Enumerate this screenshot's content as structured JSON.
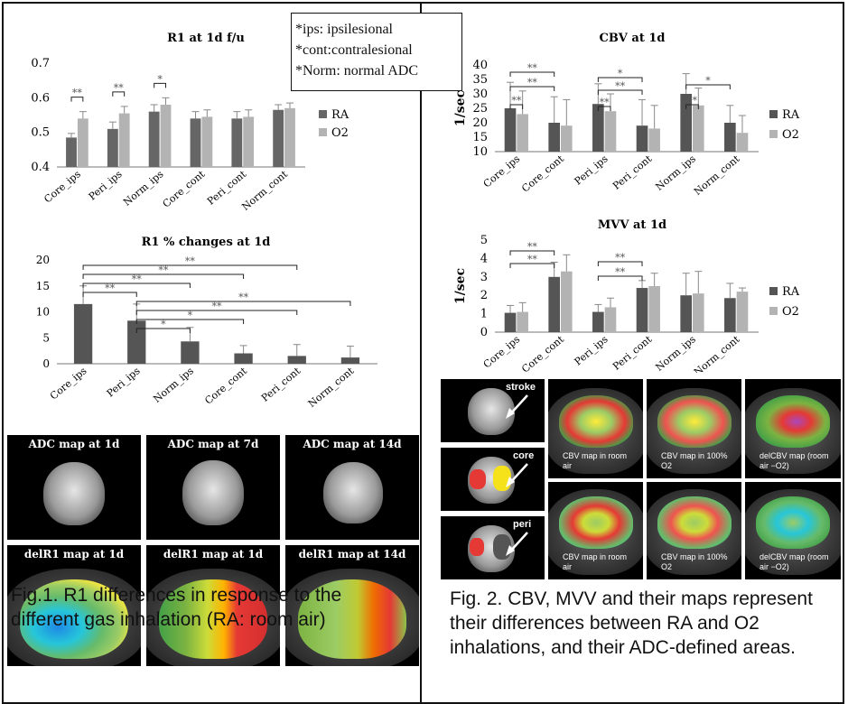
{
  "legend_notes": [
    "*ips: ipsilesional",
    "*cont:contralesional",
    "*Norm: normal ADC"
  ],
  "fig1_caption": "Fig.1. R1 differences in response to the different gas inhalation (RA: room air)",
  "fig2_caption": "Fig. 2. CBV, MVV and their maps represent their differences between RA and O2 inhalations, and their ADC-defined areas.",
  "fig1_maps": {
    "top_labels": [
      "ADC map at 1d",
      "ADC map at 7d",
      "ADC map at 14d"
    ],
    "bottom_labels": [
      "delR1 map at 1d",
      "delR1 map at 1d",
      "delR1 map at 14d"
    ]
  },
  "fig2_maps": {
    "side_labels": [
      "stroke",
      "core",
      "peri"
    ],
    "top_labels": [
      "CBV map in room air",
      "CBV map in 100% O2",
      "delCBV map (room air −O2)"
    ],
    "bottom_labels": [
      "CBV map in room air",
      "CBV map in 100% O2",
      "delCBV map (room air −O2)"
    ]
  },
  "chart_data": [
    {
      "type": "bar",
      "title": "R1 at 1d f/u",
      "categories": [
        "Core_ips",
        "Peri_ips",
        "Norm_ips",
        "Core_cont",
        "Peri_cont",
        "Norm_cont"
      ],
      "series": [
        {
          "name": "RA",
          "color": "#666666",
          "values": [
            0.485,
            0.51,
            0.56,
            0.54,
            0.54,
            0.565
          ],
          "err": [
            0.012,
            0.02,
            0.02,
            0.02,
            0.02,
            0.015
          ]
        },
        {
          "name": "O2",
          "color": "#b3b3b3",
          "values": [
            0.54,
            0.555,
            0.58,
            0.545,
            0.545,
            0.57
          ],
          "err": [
            0.02,
            0.02,
            0.02,
            0.02,
            0.02,
            0.015
          ]
        }
      ],
      "ylim": [
        0.4,
        0.7
      ],
      "yticks": [
        "0.4",
        "0.5",
        "0.6",
        "0.7"
      ],
      "significance": [
        "**",
        "**",
        "*"
      ],
      "legend": "right"
    },
    {
      "type": "bar",
      "title": "R1 % changes at 1d",
      "categories": [
        "Core_ips",
        "Peri_ips",
        "Norm_ips",
        "Core_cont",
        "Peri_cont",
        "Norm_cont"
      ],
      "series": [
        {
          "name": "",
          "color": "#555555",
          "values": [
            11.5,
            8.3,
            4.3,
            2.0,
            1.5,
            1.2
          ],
          "err": [
            3.5,
            3.2,
            2.7,
            1.5,
            2.2,
            2.2
          ]
        }
      ],
      "ylim": [
        0,
        20
      ],
      "yticks": [
        "0",
        "5",
        "10",
        "15",
        "20"
      ],
      "significance": [
        "**",
        "**",
        "**",
        "**",
        "**",
        "**",
        "*",
        "*"
      ]
    },
    {
      "type": "bar",
      "title": "CBV at 1d",
      "ylabel": "1/sec",
      "categories": [
        "Core_ips",
        "Core_cont",
        "Peri_ips",
        "Peri_cont",
        "Norm_ips",
        "Norm_cont"
      ],
      "series": [
        {
          "name": "RA",
          "color": "#555555",
          "values": [
            25,
            20,
            26.5,
            19,
            30,
            20
          ],
          "err": [
            9,
            9,
            7,
            9,
            7,
            6
          ]
        },
        {
          "name": "O2",
          "color": "#b3b3b3",
          "values": [
            23,
            19,
            24,
            18,
            26,
            16.5
          ],
          "err": [
            8,
            9,
            6,
            8,
            6,
            6
          ]
        }
      ],
      "ylim": [
        10,
        40
      ],
      "yticks": [
        "10",
        "15",
        "20",
        "25",
        "30",
        "35",
        "40"
      ],
      "significance": [
        "**",
        "**",
        "**",
        "*",
        "**",
        "**",
        "*",
        "**"
      ],
      "legend": "right"
    },
    {
      "type": "bar",
      "title": "MVV at 1d",
      "ylabel": "1/sec",
      "categories": [
        "Core_ips",
        "Core_cont",
        "Peri_ips",
        "Peri_cont",
        "Norm_ips",
        "Norm_cont"
      ],
      "series": [
        {
          "name": "RA",
          "color": "#555555",
          "values": [
            1.05,
            3.0,
            1.1,
            2.4,
            2.0,
            1.85
          ],
          "err": [
            0.4,
            0.8,
            0.4,
            0.4,
            1.2,
            0.8
          ]
        },
        {
          "name": "O2",
          "color": "#b3b3b3",
          "values": [
            1.1,
            3.3,
            1.35,
            2.5,
            2.1,
            2.2
          ],
          "err": [
            0.5,
            0.9,
            0.5,
            0.7,
            1.2,
            0.2
          ]
        }
      ],
      "ylim": [
        0,
        5
      ],
      "yticks": [
        "0",
        "1",
        "2",
        "3",
        "4",
        "5"
      ],
      "significance": [
        "**",
        "**",
        "**",
        "**"
      ],
      "legend": "right"
    }
  ]
}
